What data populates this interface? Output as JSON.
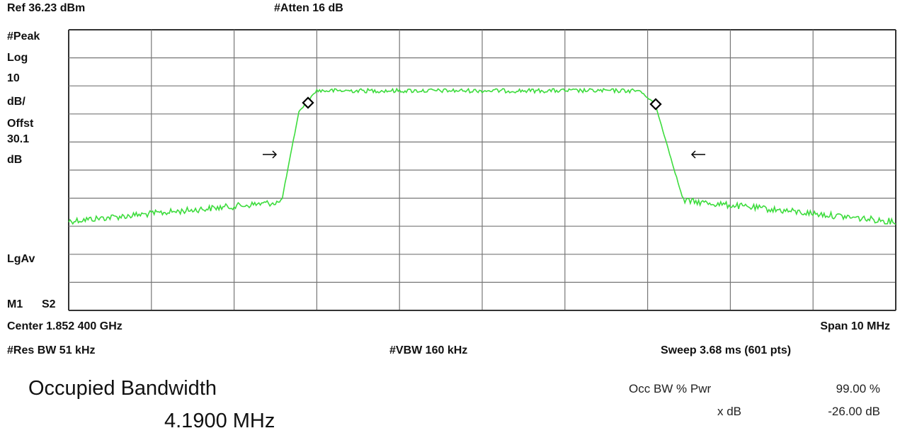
{
  "header": {
    "reference": "Ref 36.23 dBm",
    "attenuation": "#Atten 16 dB"
  },
  "side_labels": [
    "#Peak",
    "Log",
    "10",
    "dB/",
    "Offst",
    "30.1",
    "dB"
  ],
  "detector": "LgAv",
  "marker": "M1",
  "marker_mode": "S2",
  "footer": {
    "center": "Center 1.852 400 GHz",
    "span": "Span 10 MHz",
    "res_bw": "#Res BW 51 kHz",
    "vbw": "#VBW 160 kHz",
    "sweep": "Sweep 3.68 ms (601 pts)"
  },
  "measurement": {
    "title": "Occupied Bandwidth",
    "value": "4.1900 MHz",
    "params": [
      {
        "label": "Occ BW % Pwr",
        "value": "99.00 %"
      },
      {
        "label": "x dB",
        "value": "-26.00 dB"
      }
    ]
  }
}
